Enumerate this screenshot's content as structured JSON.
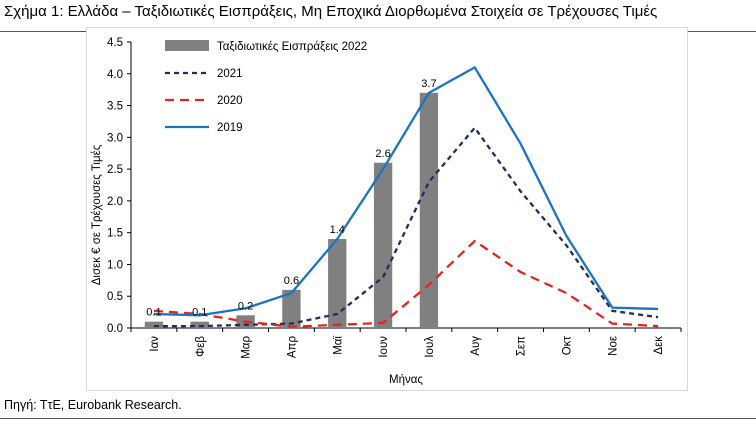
{
  "page": {
    "title": "Σχήμα 1: Ελλάδα – Ταξιδιωτικές Εισπράξεις, Μη Εποχικά Διορθωμένα Στοιχεία σε Τρέχουσες Τιμές",
    "source": "Πηγή: ΤτΕ, Eurobank Research."
  },
  "chart_data": {
    "type": "bar",
    "title": "",
    "xlabel": "Μήνας",
    "ylabel": "Δισεκ € σε Τρέχουσες Τιμές",
    "ylim": [
      0,
      4.5
    ],
    "yticks": [
      0.0,
      0.5,
      1.0,
      1.5,
      2.0,
      2.5,
      3.0,
      3.5,
      4.0,
      4.5
    ],
    "ytick_labels": [
      "0.0",
      "0.5",
      "1.0",
      "1.5",
      "2.0",
      "2.5",
      "3.0",
      "3.5",
      "4.0",
      "4.5"
    ],
    "grid": false,
    "legend": "top-left",
    "categories": [
      "Ιαν",
      "Φεβ",
      "Μαρ",
      "Απρ",
      "Μαϊ",
      "Ιουν",
      "Ιουλ",
      "Αυγ",
      "Σεπ",
      "Οκτ",
      "Νοε",
      "Δεκ"
    ],
    "series": [
      {
        "name": "Ταξιδιωτικές Εισπράξεις 2022",
        "kind": "bar",
        "color": "#808080",
        "values": [
          0.1,
          0.1,
          0.2,
          0.6,
          1.4,
          2.6,
          3.7,
          null,
          null,
          null,
          null,
          null
        ],
        "data_labels": [
          "0.1",
          "0.1",
          "0.2",
          "0.6",
          "1.4",
          "2.6",
          "3.7"
        ]
      },
      {
        "name": "2021",
        "kind": "line",
        "style": "dotted",
        "color": "#1f2f5c",
        "values": [
          0.03,
          0.03,
          0.05,
          0.07,
          0.22,
          0.8,
          2.3,
          3.15,
          2.15,
          1.3,
          0.27,
          0.17
        ]
      },
      {
        "name": "2020",
        "kind": "line",
        "style": "dashed",
        "color": "#e8231d",
        "values": [
          0.27,
          0.22,
          0.1,
          0.02,
          0.05,
          0.08,
          0.68,
          1.37,
          0.88,
          0.55,
          0.07,
          0.03
        ]
      },
      {
        "name": "2019",
        "kind": "line",
        "style": "solid",
        "color": "#1a74c5",
        "values": [
          0.22,
          0.2,
          0.31,
          0.55,
          1.4,
          2.5,
          3.7,
          4.1,
          2.9,
          1.45,
          0.32,
          0.3
        ]
      }
    ]
  }
}
